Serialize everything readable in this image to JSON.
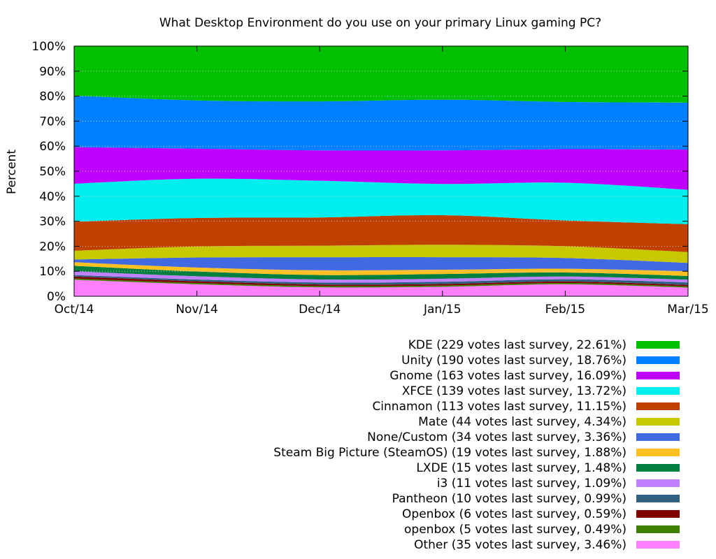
{
  "chart_data": {
    "type": "area",
    "stacked": true,
    "normalized": true,
    "title": "What Desktop Environment do you use on your primary Linux gaming PC?",
    "ylabel": "Percent",
    "xlabel": "",
    "ylim": [
      0,
      100
    ],
    "grid": true,
    "legend_position": "bottom-right",
    "x": [
      "2014-10",
      "2014-11",
      "2014-12",
      "2015-01",
      "2015-02",
      "2015-03"
    ],
    "x_tick_labels": [
      "Oct/14",
      "Nov/14",
      "Dec/14",
      "Jan/15",
      "Feb/15",
      "Mar/15"
    ],
    "y_tick_labels": [
      "0%",
      "10%",
      "20%",
      "30%",
      "40%",
      "50%",
      "60%",
      "70%",
      "80%",
      "90%",
      "100%"
    ],
    "series": [
      {
        "name": "Other",
        "legend": "Other (35 votes last survey, 3.46%)",
        "color": "#ff80ff",
        "values": [
          6.6,
          4.8,
          3.6,
          3.8,
          4.8,
          3.46
        ]
      },
      {
        "name": "openbox",
        "legend": "openbox (5 votes last survey, 0.49%)",
        "color": "#408000",
        "values": [
          0.5,
          0.5,
          0.5,
          0.5,
          0.5,
          0.49
        ]
      },
      {
        "name": "Openbox",
        "legend": "Openbox (6 votes last survey, 0.59%)",
        "color": "#800000",
        "values": [
          0.8,
          0.7,
          0.6,
          0.6,
          0.6,
          0.59
        ]
      },
      {
        "name": "Pantheon",
        "legend": "Pantheon (10 votes last survey, 0.99%)",
        "color": "#306080",
        "values": [
          0.6,
          0.7,
          0.8,
          0.9,
          0.9,
          0.99
        ]
      },
      {
        "name": "i3",
        "legend": "i3 (11 votes last survey, 1.09%)",
        "color": "#c080ff",
        "values": [
          1.5,
          1.3,
          1.2,
          1.2,
          1.1,
          1.09
        ]
      },
      {
        "name": "LXDE",
        "legend": "LXDE (15 votes last survey, 1.48%)",
        "color": "#007f3f",
        "values": [
          2.2,
          1.9,
          1.8,
          1.9,
          1.6,
          1.48
        ]
      },
      {
        "name": "Steam Big Picture (SteamOS)",
        "legend": "Steam Big Picture (SteamOS) (19 votes last survey, 1.88%)",
        "color": "#ffc020",
        "values": [
          1.4,
          1.6,
          1.9,
          1.7,
          1.5,
          1.88
        ]
      },
      {
        "name": "None/Custom",
        "legend": "None/Custom (34 votes last survey, 3.36%)",
        "color": "#4169e1",
        "values": [
          1.1,
          4.0,
          5.2,
          5.0,
          4.3,
          3.36
        ]
      },
      {
        "name": "Mate",
        "legend": "Mate (44 votes last survey, 4.34%)",
        "color": "#c8c800",
        "values": [
          3.5,
          4.4,
          4.6,
          5.0,
          4.7,
          4.34
        ]
      },
      {
        "name": "Cinnamon",
        "legend": "Cinnamon (113 votes last survey, 11.15%)",
        "color": "#c04000",
        "values": [
          11.6,
          11.4,
          11.3,
          11.8,
          10.3,
          11.15
        ]
      },
      {
        "name": "XFCE",
        "legend": "XFCE (139 votes last survey, 13.72%)",
        "color": "#00eeee",
        "values": [
          15.2,
          15.7,
          14.7,
          12.5,
          15.1,
          13.72
        ]
      },
      {
        "name": "Gnome",
        "legend": "Gnome (163 votes last survey, 16.09%)",
        "color": "#c000ff",
        "values": [
          14.6,
          12.0,
          12.1,
          13.4,
          13.4,
          16.09
        ]
      },
      {
        "name": "Unity",
        "legend": "Unity (190 votes last survey, 18.76%)",
        "color": "#0080ff",
        "values": [
          20.6,
          19.3,
          19.6,
          20.3,
          18.9,
          18.76
        ]
      },
      {
        "name": "KDE",
        "legend": "KDE (229 votes last survey, 22.61%)",
        "color": "#00c000",
        "values": [
          19.8,
          21.7,
          22.1,
          21.4,
          22.3,
          22.61
        ]
      }
    ]
  }
}
